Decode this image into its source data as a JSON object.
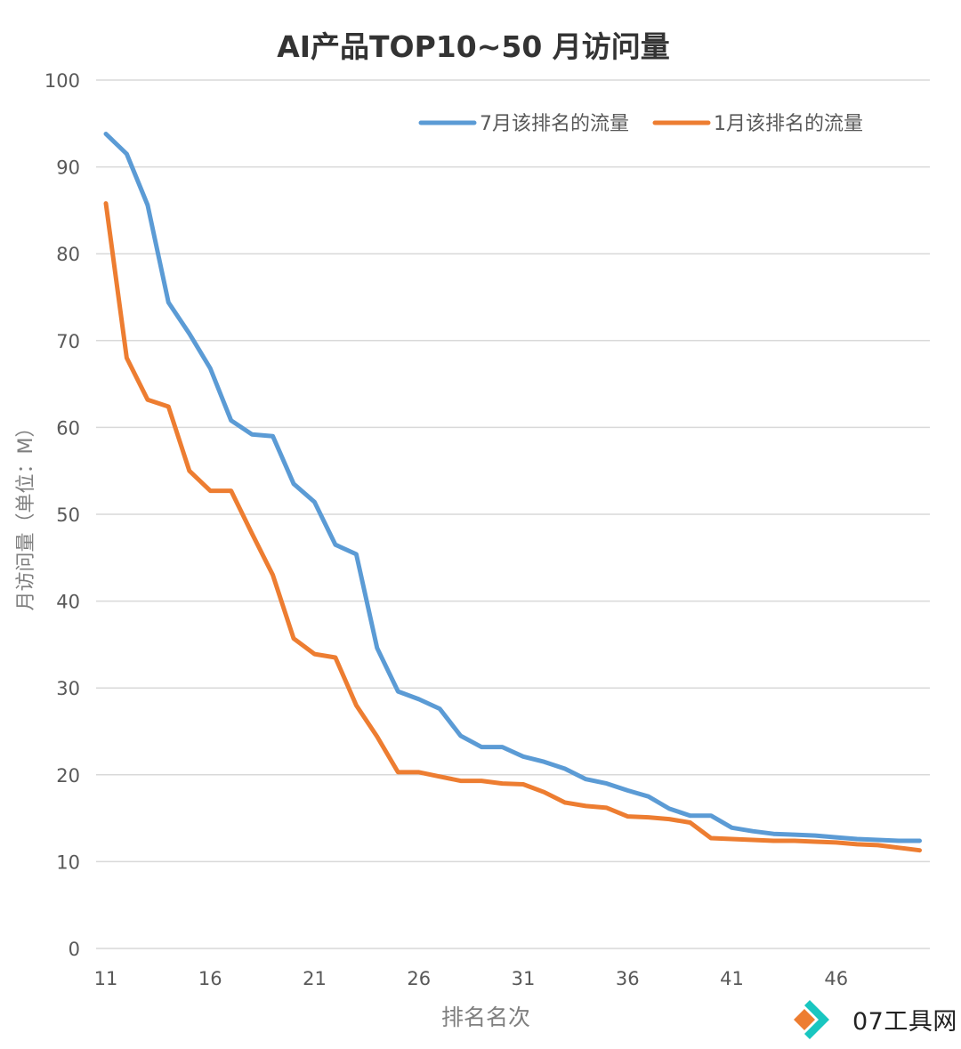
{
  "chart_data": {
    "type": "line",
    "title": "AI产品TOP10~50 月访问量",
    "xlabel": "排名名次",
    "ylabel": "月访问量（单位：M）",
    "ylim": [
      0,
      100
    ],
    "yticks": [
      0,
      10,
      20,
      30,
      40,
      50,
      60,
      70,
      80,
      90,
      100
    ],
    "xlim": [
      11,
      50
    ],
    "xticks": [
      11,
      16,
      21,
      26,
      31,
      36,
      41,
      46
    ],
    "grid": "horizontal",
    "legend_position": "top-right",
    "x": [
      11,
      12,
      13,
      14,
      15,
      16,
      17,
      18,
      19,
      20,
      21,
      22,
      23,
      24,
      25,
      26,
      27,
      28,
      29,
      30,
      31,
      32,
      33,
      34,
      35,
      36,
      37,
      38,
      39,
      40,
      41,
      42,
      43,
      44,
      45,
      46,
      47,
      48,
      49,
      50
    ],
    "series": [
      {
        "name": "7月该排名的流量",
        "color": "#5b9bd5",
        "values": [
          93.8,
          91.5,
          85.6,
          74.4,
          70.8,
          66.8,
          60.8,
          59.2,
          59.0,
          53.5,
          51.4,
          46.5,
          45.4,
          34.6,
          29.6,
          28.7,
          27.6,
          24.5,
          23.2,
          23.2,
          22.1,
          21.5,
          20.7,
          19.5,
          19.0,
          18.2,
          17.5,
          16.1,
          15.3,
          15.3,
          13.9,
          13.5,
          13.2,
          13.1,
          13.0,
          12.8,
          12.6,
          12.5,
          12.4,
          12.4
        ]
      },
      {
        "name": "1月该排名的流量",
        "color": "#ed7d31",
        "values": [
          85.8,
          68.0,
          63.2,
          62.4,
          55.0,
          52.7,
          52.7,
          47.8,
          43.0,
          35.7,
          33.9,
          33.5,
          28.0,
          24.4,
          20.3,
          20.3,
          19.8,
          19.3,
          19.3,
          19.0,
          18.9,
          18.0,
          16.8,
          16.4,
          16.2,
          15.2,
          15.1,
          14.9,
          14.5,
          12.7,
          12.6,
          12.5,
          12.4,
          12.4,
          12.3,
          12.2,
          12.0,
          11.9,
          11.6,
          11.3
        ]
      }
    ]
  },
  "watermark": {
    "text": "07工具网",
    "icon": "diamond-logo-icon",
    "colors": [
      "#ed7d31",
      "#19c6c0"
    ]
  }
}
